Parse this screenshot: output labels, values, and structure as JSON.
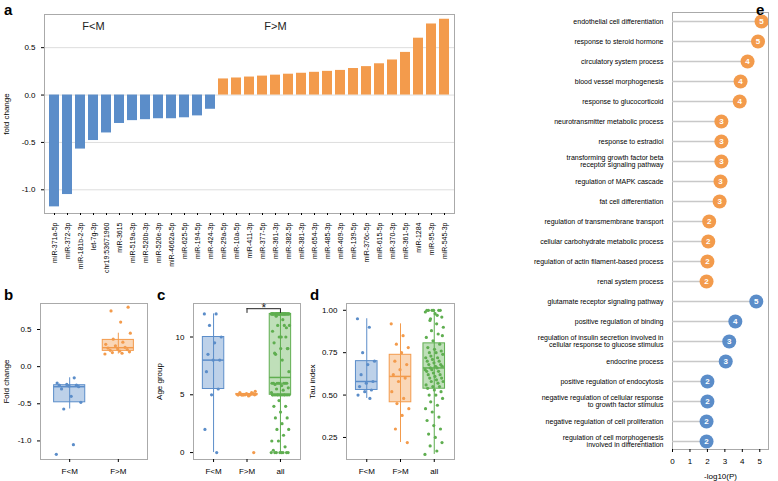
{
  "chart_data": [
    {
      "type": "bar",
      "title": "a",
      "y_label": "fold change",
      "categories": [
        "miR-371a-5p",
        "miR-372-3p",
        "miR-181b-2-3p",
        "let-7g-3p",
        "chr19:53671960",
        "miR-3615",
        "miR-519a-3p",
        "miR-520b-3p",
        "miR-520e-3p",
        "miR-4662a-5p",
        "miR-625-5p",
        "miR-194-5p",
        "miR-424-3p",
        "miR-29a-5p",
        "miR-10a-5p",
        "miR-411-3p",
        "miR-377-5p",
        "miR-361-3p",
        "miR-382-5p",
        "miR-381-3p",
        "miR-654-3p",
        "miR-485-3p",
        "miR-409-3p",
        "miR-139-5p",
        "miR-376c-5p",
        "miR-615-5p",
        "miR-370-3p",
        "miR-361-5p",
        "miR-1284",
        "miR-95-3p",
        "miR-545-3p"
      ],
      "values": [
        -1.18,
        -1.05,
        -0.57,
        -0.48,
        -0.4,
        -0.3,
        -0.27,
        -0.26,
        -0.25,
        -0.25,
        -0.24,
        -0.22,
        -0.15,
        0.17,
        0.18,
        0.19,
        0.2,
        0.21,
        0.22,
        0.23,
        0.24,
        0.25,
        0.26,
        0.28,
        0.3,
        0.33,
        0.37,
        0.45,
        0.6,
        0.75,
        0.8
      ],
      "colors": [
        "#5b8dc9",
        "#5b8dc9",
        "#5b8dc9",
        "#5b8dc9",
        "#5b8dc9",
        "#5b8dc9",
        "#5b8dc9",
        "#5b8dc9",
        "#5b8dc9",
        "#5b8dc9",
        "#5b8dc9",
        "#5b8dc9",
        "#5b8dc9",
        "#f39b4c",
        "#f39b4c",
        "#f39b4c",
        "#f39b4c",
        "#f39b4c",
        "#f39b4c",
        "#f39b4c",
        "#f39b4c",
        "#f39b4c",
        "#f39b4c",
        "#f39b4c",
        "#f39b4c",
        "#f39b4c",
        "#f39b4c",
        "#f39b4c",
        "#f39b4c",
        "#f39b4c",
        "#f39b4c"
      ],
      "ylim": [
        -1.25,
        0.85
      ],
      "yticks": [
        {
          "value": -1,
          "label": "-1.0"
        },
        -0.5,
        {
          "value": 0,
          "label": "0.0"
        },
        0.5
      ],
      "grid": true,
      "annotations": [
        {
          "text": "F<M",
          "x": "let-7g-3p",
          "y": 0.72
        },
        {
          "text": "F>M",
          "x": "miR-361-3p",
          "y": 0.72
        }
      ]
    },
    {
      "type": "box",
      "title": "b",
      "y_label": "Fold change",
      "series": [
        {
          "name": "F<M",
          "color": "#5b8dc9",
          "values": [
            -1.18,
            -1.05,
            -0.57,
            -0.48,
            -0.4,
            -0.3,
            -0.27,
            -0.26,
            -0.25,
            -0.25,
            -0.24,
            -0.22,
            -0.15
          ]
        },
        {
          "name": "F>M",
          "color": "#f39b4c",
          "values": [
            0.17,
            0.18,
            0.19,
            0.2,
            0.21,
            0.22,
            0.23,
            0.24,
            0.25,
            0.26,
            0.28,
            0.3,
            0.33,
            0.37,
            0.45,
            0.6,
            0.75,
            0.8
          ]
        }
      ],
      "ylim": [
        -1.25,
        0.85
      ],
      "yticks": [
        {
          "value": -1,
          "label": "-1.0"
        },
        -0.5,
        {
          "value": 0,
          "label": "0.0"
        },
        0.5
      ]
    },
    {
      "type": "box",
      "title": "c",
      "y_label": "Age group",
      "series": [
        {
          "name": "F<M",
          "color": "#5b8dc9",
          "values": [
            12,
            12,
            11,
            10,
            9.5,
            8.5,
            8,
            8,
            7,
            5.5,
            5,
            2,
            0
          ]
        },
        {
          "name": "F>M",
          "color": "#f39b4c",
          "values": [
            5,
            5,
            5,
            5,
            5,
            5,
            5.1,
            5.1,
            5.2,
            5.2,
            5,
            5,
            5,
            5,
            5.3,
            4.9,
            5,
            0
          ]
        },
        {
          "name": "all",
          "color": "#5fae50",
          "values": [
            0,
            0,
            0,
            0,
            0,
            0,
            0,
            0,
            0.2,
            0.5,
            1,
            1,
            1.5,
            2,
            2,
            2.5,
            3,
            3,
            3.5,
            4,
            4,
            4.5,
            5,
            5,
            5,
            5,
            5,
            5,
            5,
            5,
            5,
            5,
            5,
            5,
            5,
            5,
            5.2,
            5.4,
            5.5,
            5.6,
            5.8,
            5.9,
            6,
            6,
            6,
            6,
            6,
            6,
            6,
            6,
            7,
            8,
            8.5,
            9,
            9,
            9.5,
            10,
            10,
            10.5,
            11,
            11,
            11,
            11.5,
            11.8,
            9,
            10,
            8.6,
            10.8,
            12,
            12,
            12,
            12,
            12,
            12,
            12,
            12,
            12,
            12,
            12,
            12,
            12,
            12,
            12,
            12,
            12,
            12,
            12,
            12,
            12,
            12,
            12,
            12,
            12,
            12,
            12,
            12,
            12,
            12,
            12,
            12
          ]
        }
      ],
      "ylim": [
        -0.6,
        12.9
      ],
      "yticks": [
        0,
        5,
        10
      ],
      "annotations": [
        {
          "text": "*",
          "between": [
            "F>M",
            "all"
          ],
          "y": 12.45
        }
      ]
    },
    {
      "type": "box",
      "title": "d",
      "y_label": "Tau index",
      "series": [
        {
          "name": "F<M",
          "color": "#5b8dc9",
          "values": [
            0.95,
            0.9,
            0.75,
            0.7,
            0.68,
            0.62,
            0.58,
            0.57,
            0.55,
            0.53,
            0.52,
            0.5,
            0.48
          ]
        },
        {
          "name": "F>M",
          "color": "#f39b4c",
          "values": [
            0.92,
            0.85,
            0.8,
            0.78,
            0.75,
            0.7,
            0.68,
            0.65,
            0.62,
            0.6,
            0.58,
            0.52,
            0.48,
            0.45,
            0.42,
            0.38,
            0.3,
            0.22
          ]
        },
        {
          "name": "all",
          "color": "#5fae50",
          "values": [
            0.15,
            0.17,
            0.2,
            0.22,
            0.25,
            0.27,
            0.3,
            0.32,
            0.35,
            0.37,
            0.4,
            0.42,
            0.44,
            0.46,
            0.48,
            0.5,
            0.5,
            0.52,
            0.53,
            0.54,
            0.55,
            0.55,
            0.56,
            0.57,
            0.58,
            0.58,
            0.59,
            0.6,
            0.6,
            0.61,
            0.62,
            0.62,
            0.63,
            0.64,
            0.64,
            0.65,
            0.65,
            0.66,
            0.66,
            0.67,
            0.67,
            0.68,
            0.68,
            0.69,
            0.7,
            0.7,
            0.71,
            0.72,
            0.72,
            0.73,
            0.74,
            0.75,
            0.75,
            0.76,
            0.77,
            0.78,
            0.8,
            0.82,
            0.84,
            0.86,
            0.88,
            0.9,
            0.92,
            0.94,
            0.96,
            0.98,
            1,
            1,
            1,
            1,
            1,
            1,
            0.99,
            0.97,
            0.95,
            0.85
          ]
        }
      ],
      "ylim": [
        0.12,
        1.04
      ],
      "yticks": [
        0.25,
        {
          "value": 0.5,
          "label": "0.50"
        },
        0.75,
        {
          "value": 1,
          "label": "1.00"
        }
      ]
    },
    {
      "type": "lollipop",
      "title": "e",
      "x_label": "-log10(P)",
      "categories": [
        "endothelial cell differentiation",
        "response to steroid hormone",
        "circulatory system process",
        "blood vessel morphogenesis",
        "response to glucocorticoid",
        "neurotransmitter metabolic process",
        "response to estradiol",
        "transforming growth factor beta\nreceptor signaling pathway",
        "regulation of MAPK cascade",
        "fat cell differentiation",
        "regulation of transmembrane transport",
        "cellular carbohydrate metabolic process",
        "regulation of actin filament-based process",
        "renal system process",
        "glutamate receptor signaling pathway",
        "positive regulation of binding",
        "regulation of insulin secretion involved in\ncellular response to glucose stimulus",
        "endocrine process",
        "positive regulation of endocytosis",
        "negative regulation of cellular response\nto growth factor stimulus",
        "negative regulation of cell proliferation",
        "regulation of cell morphogenesis\ninvolved in differentiation"
      ],
      "values": [
        5.1,
        4.9,
        4.3,
        3.9,
        3.85,
        2.8,
        2.8,
        2.8,
        2.75,
        2.7,
        2.1,
        2.05,
        2.0,
        1.95,
        4.8,
        3.6,
        3.25,
        3.05,
        2.0,
        2.0,
        1.95,
        1.95
      ],
      "counts": [
        5,
        5,
        4,
        4,
        4,
        3,
        3,
        3,
        3,
        3,
        2,
        2,
        2,
        2,
        5,
        4,
        3,
        3,
        2,
        2,
        2,
        2
      ],
      "colors": [
        "#f39b4c",
        "#f39b4c",
        "#f39b4c",
        "#f39b4c",
        "#f39b4c",
        "#f39b4c",
        "#f39b4c",
        "#f39b4c",
        "#f39b4c",
        "#f39b4c",
        "#f39b4c",
        "#f39b4c",
        "#f39b4c",
        "#f39b4c",
        "#5b8dc9",
        "#5b8dc9",
        "#5b8dc9",
        "#5b8dc9",
        "#5b8dc9",
        "#5b8dc9",
        "#5b8dc9",
        "#5b8dc9"
      ],
      "xlim": [
        0,
        5.5
      ],
      "xticks": [
        0,
        1,
        2,
        3,
        4,
        5
      ]
    }
  ]
}
